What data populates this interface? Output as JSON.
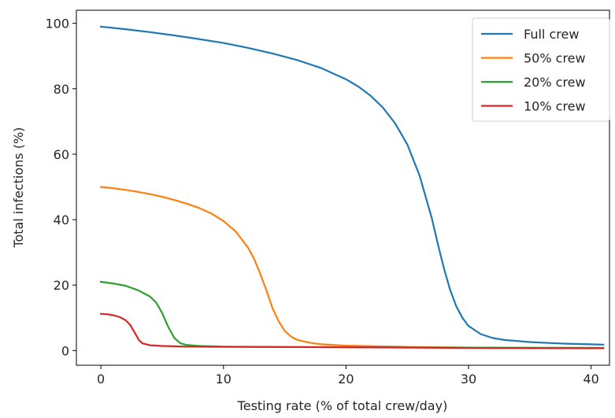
{
  "chart_data": {
    "type": "line",
    "title": "",
    "xlabel": "Testing rate (% of total crew/day)",
    "ylabel": "Total infections (%)",
    "xlim": [
      -2,
      41.5
    ],
    "ylim": [
      -4.5,
      104
    ],
    "xticks": [
      0,
      10,
      20,
      30,
      40
    ],
    "yticks": [
      0,
      20,
      40,
      60,
      80,
      100
    ],
    "grid": false,
    "legend_position": "top-right",
    "series": [
      {
        "name": "Full crew",
        "color": "#1f77b4",
        "x": [
          0,
          2,
          4,
          6,
          8,
          10,
          12,
          14,
          16,
          18,
          20,
          21,
          22,
          23,
          24,
          25,
          26,
          27,
          27.5,
          28,
          28.5,
          29,
          29.5,
          30,
          31,
          32,
          33,
          34,
          35,
          36,
          38,
          40,
          41
        ],
        "y": [
          99,
          98.2,
          97.3,
          96.3,
          95.2,
          94,
          92.5,
          90.8,
          88.8,
          86.3,
          82.9,
          80.7,
          77.9,
          74.3,
          69.5,
          63,
          53.5,
          40.5,
          32.5,
          25,
          18.5,
          13.5,
          10,
          7.5,
          5,
          3.8,
          3.2,
          2.9,
          2.6,
          2.4,
          2.1,
          1.9,
          1.8
        ]
      },
      {
        "name": "50% crew",
        "color": "#ff7f0e",
        "x": [
          0,
          1,
          2,
          3,
          4,
          5,
          6,
          7,
          8,
          9,
          10,
          11,
          12,
          12.5,
          13,
          13.5,
          14,
          14.5,
          15,
          15.5,
          16,
          17,
          18,
          20,
          25,
          30,
          35,
          41
        ],
        "y": [
          50,
          49.6,
          49.1,
          48.5,
          47.8,
          47,
          46,
          44.9,
          43.6,
          41.9,
          39.6,
          36.4,
          31.5,
          28,
          23.5,
          18.5,
          13,
          9,
          6,
          4.3,
          3.3,
          2.4,
          1.9,
          1.5,
          1.1,
          0.9,
          0.8,
          0.8
        ]
      },
      {
        "name": "20% crew",
        "color": "#2ca02c",
        "x": [
          0,
          1,
          2,
          3,
          4,
          4.5,
          5,
          5.5,
          6,
          6.5,
          7,
          8,
          10,
          15,
          20,
          30,
          41
        ],
        "y": [
          21,
          20.5,
          19.8,
          18.5,
          16.5,
          14.7,
          11.5,
          7.2,
          3.8,
          2.2,
          1.7,
          1.4,
          1.2,
          1.1,
          1,
          0.9,
          0.8
        ]
      },
      {
        "name": "10% crew",
        "color": "#d62728",
        "x": [
          0,
          0.5,
          1,
          1.5,
          2,
          2.4,
          2.8,
          3.1,
          3.4,
          4,
          5,
          7,
          10,
          20,
          30,
          41
        ],
        "y": [
          11.2,
          11.1,
          10.8,
          10.3,
          9.3,
          7.8,
          5.2,
          3.2,
          2.2,
          1.6,
          1.4,
          1.2,
          1.1,
          1,
          0.8,
          0.7
        ]
      }
    ]
  }
}
